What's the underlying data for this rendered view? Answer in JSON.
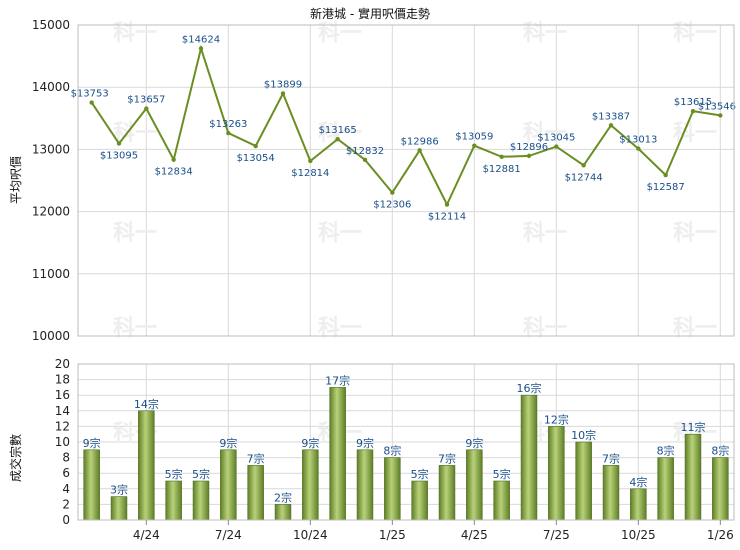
{
  "watermark": "科一",
  "chart_data": [
    {
      "type": "line",
      "title": "新港城 - 實用呎價走勢",
      "xlabel": "",
      "ylabel": "平均呎價",
      "ylim": [
        10000,
        15000
      ],
      "yticks": [
        "10000",
        "11000",
        "12000",
        "13000",
        "14000",
        "15000"
      ],
      "grid": true,
      "line_color": "#6b8e23",
      "series": [
        {
          "values": [
            13753,
            13095,
            13657,
            12834,
            14624,
            13263,
            13054,
            13899,
            12814,
            13165,
            12832,
            12306,
            12986,
            12114,
            13059,
            12881,
            12896,
            13045,
            12744,
            13387,
            13013,
            12587,
            13615,
            13546
          ],
          "labels": [
            "$13753",
            "$13095",
            "$13657",
            "$12834",
            "$14624",
            "$13263",
            "$13054",
            "$13899",
            "$12814",
            "$13165",
            "$12832",
            "$12306",
            "$12986",
            "$12114",
            "$13059",
            "$12881",
            "$12896",
            "$13045",
            "$12744",
            "$13387",
            "$13013",
            "$12587",
            "$13615",
            "$13546"
          ]
        }
      ]
    },
    {
      "type": "bar",
      "xlabel": "",
      "ylabel": "成交宗數",
      "ylim": [
        0,
        20
      ],
      "yticks": [
        "0",
        "2",
        "4",
        "6",
        "8",
        "10",
        "12",
        "14",
        "16",
        "18",
        "20"
      ],
      "categories": [
        "4/24",
        "7/24",
        "10/24",
        "1/25",
        "4/25",
        "7/25",
        "10/25",
        "1/26"
      ],
      "grid": true,
      "bar_color": "#7a9a3a",
      "values": [
        9,
        3,
        14,
        5,
        5,
        9,
        7,
        2,
        9,
        17,
        9,
        8,
        5,
        7,
        9,
        5,
        16,
        12,
        10,
        7,
        4,
        8,
        11,
        8
      ],
      "labels": [
        "9宗",
        "3宗",
        "14宗",
        "5宗",
        "5宗",
        "9宗",
        "7宗",
        "2宗",
        "9宗",
        "17宗",
        "9宗",
        "8宗",
        "5宗",
        "7宗",
        "9宗",
        "5宗",
        "16宗",
        "12宗",
        "10宗",
        "7宗",
        "4宗",
        "8宗",
        "11宗",
        "8宗"
      ]
    }
  ]
}
